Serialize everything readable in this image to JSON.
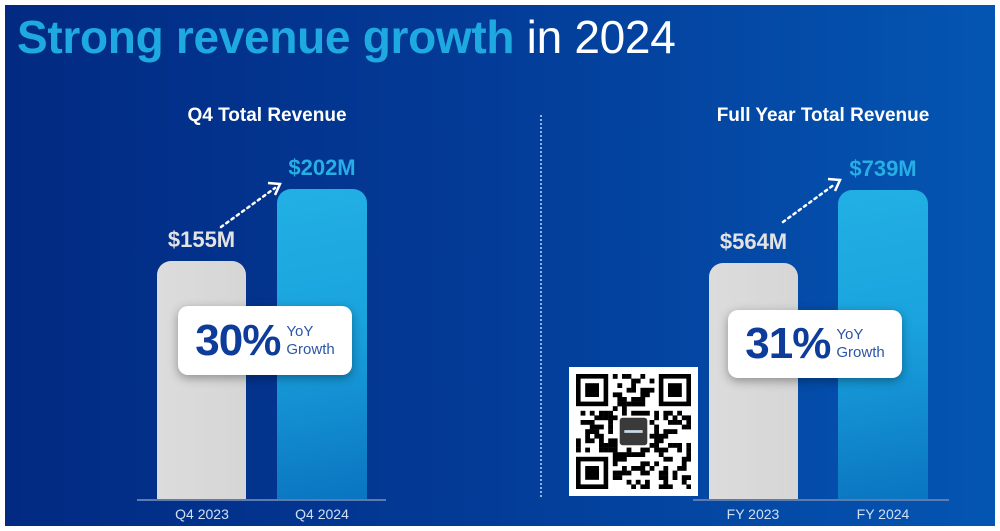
{
  "title": {
    "highlight": "Strong revenue growth",
    "rest": "in 2024"
  },
  "colors": {
    "background_dark": "#022a82",
    "background_light": "#0455b2",
    "accent": "#1ea9e1",
    "prior_bar": "#d9d9d9",
    "current_bar": "#1aa3de",
    "badge_text": "#0d3c9b"
  },
  "chart_data": [
    {
      "type": "bar",
      "title": "Q4 Total Revenue",
      "categories": [
        "Q4 2023",
        "Q4 2024"
      ],
      "values": [
        155,
        202
      ],
      "value_labels": [
        "$155M",
        "$202M"
      ],
      "unit": "$M",
      "xlabel": "",
      "ylabel": "",
      "ylim": [
        0,
        202
      ],
      "grid": false,
      "growth": {
        "value": "30%",
        "label_line1": "YoY",
        "label_line2": "Growth"
      }
    },
    {
      "type": "bar",
      "title": "Full Year Total Revenue",
      "categories": [
        "FY 2023",
        "FY 2024"
      ],
      "values": [
        564,
        739
      ],
      "value_labels": [
        "$564M",
        "$739M"
      ],
      "unit": "$M",
      "xlabel": "",
      "ylabel": "",
      "ylim": [
        0,
        739
      ],
      "grid": false,
      "growth": {
        "value": "31%",
        "label_line1": "YoY",
        "label_line2": "Growth"
      }
    }
  ],
  "qr_code": {
    "icon": "qr-code-icon"
  }
}
